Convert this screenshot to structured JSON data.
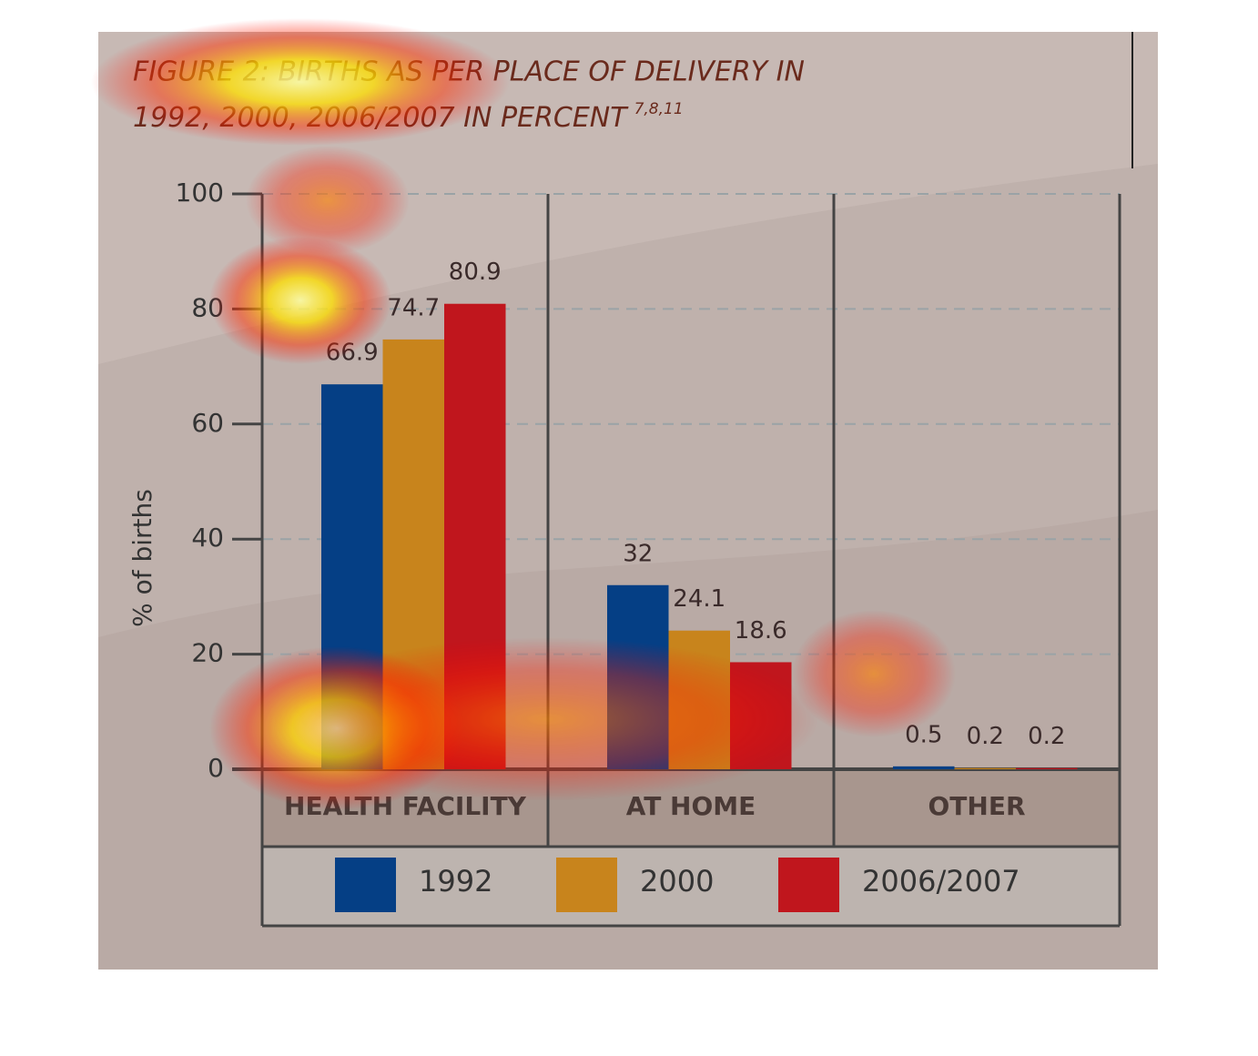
{
  "chart_data": {
    "type": "bar",
    "title": [
      "FIGURE 2: BIRTHS AS PER PLACE OF DELIVERY IN",
      "1992, 2000, 2006/2007 IN PERCENT"
    ],
    "title_superscript": "7,8,11",
    "y_label": "% of births",
    "categories": [
      "HEALTH FACILITY",
      "AT HOME",
      "OTHER"
    ],
    "series": [
      {
        "name": "1992",
        "color": "#053f85",
        "values": [
          66.9,
          32,
          0.5
        ]
      },
      {
        "name": "2000",
        "color": "#c8841c",
        "values": [
          74.7,
          24.1,
          0.2
        ]
      },
      {
        "name": "2006/2007",
        "color": "#c0161d",
        "values": [
          80.9,
          18.6,
          0.2
        ]
      }
    ],
    "ylim": [
      0,
      100
    ],
    "yticks": [
      0,
      20,
      40,
      60,
      80,
      100
    ],
    "grid": true
  }
}
